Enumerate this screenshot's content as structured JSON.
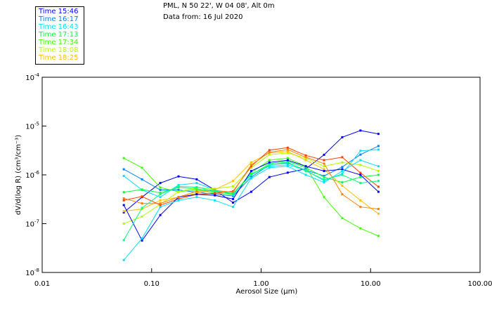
{
  "header": {
    "location": "PML, N 50 22', W 04 08', Alt 0m",
    "date": "Data from: 16 Jul 2020"
  },
  "chart_data": {
    "type": "line",
    "title": "",
    "xlabel": "Aerosol Size (µm)",
    "ylabel": "dV/d(log R) (cm³/cm⁻³)",
    "xscale": "log",
    "yscale": "log",
    "xlim": [
      0.01,
      100
    ],
    "ylim": [
      1e-08,
      0.0001
    ],
    "x_ticks": [
      0.01,
      0.1,
      1,
      10,
      100
    ],
    "x_tick_labels": [
      "0.01",
      "0.10",
      "1.00",
      "10.00",
      "100.00"
    ],
    "y_ticks": [
      0.0001,
      1e-05,
      1e-06,
      1e-07,
      1e-08
    ],
    "y_tick_labels": [
      {
        "base": "10",
        "exp": "-4"
      },
      {
        "base": "10",
        "exp": "-5"
      },
      {
        "base": "10",
        "exp": "-6"
      },
      {
        "base": "10",
        "exp": "-7"
      },
      {
        "base": "10",
        "exp": "-8"
      }
    ],
    "legend_position": "top-left (outside)",
    "grid": false,
    "x": [
      0.0557,
      0.0817,
      0.12,
      0.176,
      0.258,
      0.378,
      0.554,
      0.812,
      1.19,
      1.75,
      2.56,
      3.76,
      5.51,
      8.08,
      11.8
    ],
    "series": [
      {
        "name": "Time 15:46",
        "color": "#0000ff",
        "values": [
          1.7e-07,
          3.5e-07,
          6.8e-07,
          9.3e-07,
          8.1e-07,
          4.9e-07,
          2.7e-07,
          4.5e-07,
          9e-07,
          1.11e-06,
          1.33e-06,
          2.58e-06,
          5.9e-06,
          8.1e-06,
          6.9e-06
        ]
      },
      {
        "name": "Time 16:17",
        "color": "#0080ff",
        "values": [
          1.3e-06,
          8.1e-07,
          4.9e-07,
          4.9e-07,
          4.4e-07,
          4e-07,
          3.7e-07,
          9e-07,
          1.6e-06,
          1.75e-06,
          1.25e-06,
          9.5e-07,
          1.45e-06,
          2.6e-06,
          3.9e-06
        ]
      },
      {
        "name": "Time 16:43",
        "color": "#00e0ff",
        "values": [
          9.5e-07,
          4.9e-07,
          3.5e-07,
          6.2e-07,
          6.8e-07,
          4.9e-07,
          3.9e-07,
          1.05e-06,
          1.5e-06,
          1.6e-06,
          1.25e-06,
          7.6e-07,
          1.05e-06,
          3.1e-06,
          3.3e-06
        ]
      },
      {
        "name": "Time 17:13",
        "color": "#00ff40",
        "values": [
          4.4e-07,
          5e-07,
          4.3e-07,
          5.5e-07,
          5.2e-07,
          4.5e-07,
          4.2e-07,
          1e-06,
          1.7e-06,
          1.9e-06,
          1.4e-06,
          9e-07,
          7e-07,
          9e-07,
          1e-06
        ]
      },
      {
        "name": "Time 17:34",
        "color": "#40ff00",
        "values": [
          2.2e-06,
          1.4e-06,
          5.5e-07,
          4.5e-07,
          5e-07,
          4.2e-07,
          4e-07,
          1.1e-06,
          2e-06,
          2.2e-06,
          1.5e-06,
          3.5e-07,
          1.3e-07,
          8e-08,
          5.6e-08
        ]
      },
      {
        "name": "Time 18:08",
        "color": "#b0ff00",
        "values": [
          1e-07,
          1.4e-07,
          2.5e-07,
          4.5e-07,
          5.5e-07,
          5.2e-07,
          5.8e-07,
          1.4e-06,
          2.6e-06,
          2.8e-06,
          2.2e-06,
          1.5e-06,
          1.8e-06,
          1.6e-06,
          1.2e-06
        ]
      },
      {
        "name": "Time 18:25",
        "color": "#ffc000",
        "values": [
          1.8e-07,
          2e-07,
          3e-07,
          3.5e-07,
          4.2e-07,
          5e-07,
          7.5e-07,
          1.8e-06,
          2.8e-06,
          3e-06,
          2e-06,
          1.3e-06,
          6e-07,
          3e-07,
          1.6e-07
        ]
      },
      {
        "color": "#ff4000",
        "values": [
          3e-07,
          3.6e-07,
          2.4e-07,
          3.2e-07,
          4e-07,
          4.2e-07,
          4.6e-07,
          1.5e-06,
          3.2e-06,
          3.6e-06,
          2.5e-06,
          2e-06,
          2.3e-06,
          1.1e-06,
          5.7e-07
        ]
      },
      {
        "color": "#0000ff",
        "values": [
          2.4e-07,
          4.5e-08,
          1.5e-07,
          3.5e-07,
          4e-07,
          3.8e-07,
          3.2e-07,
          1.2e-06,
          1.8e-06,
          2e-06,
          1.5e-06,
          1.2e-06,
          1.3e-06,
          1e-06,
          4.5e-07
        ]
      },
      {
        "color": "#00e0ff",
        "values": [
          1.8e-08,
          5e-08,
          2.2e-07,
          3e-07,
          3.5e-07,
          3e-07,
          2.2e-07,
          8.5e-07,
          1.4e-06,
          1.5e-06,
          1e-06,
          7e-07,
          1.2e-06,
          2e-06,
          1.5e-06
        ]
      },
      {
        "color": "#ff8000",
        "values": [
          3.3e-07,
          2.6e-07,
          2.6e-07,
          3.5e-07,
          4.6e-07,
          4.8e-07,
          4.4e-07,
          1.6e-06,
          2.9e-06,
          3.3e-06,
          2.3e-06,
          1.7e-06,
          4e-07,
          2.2e-07,
          2e-07
        ]
      },
      {
        "color": "#00ff80",
        "values": [
          4.6e-08,
          2.1e-07,
          4e-07,
          5.8e-07,
          5.6e-07,
          4.7e-07,
          4.1e-07,
          1e-06,
          1.6e-06,
          1.8e-06,
          1.2e-06,
          8e-07,
          1e-06,
          6.8e-07,
          7.5e-07
        ]
      }
    ]
  }
}
